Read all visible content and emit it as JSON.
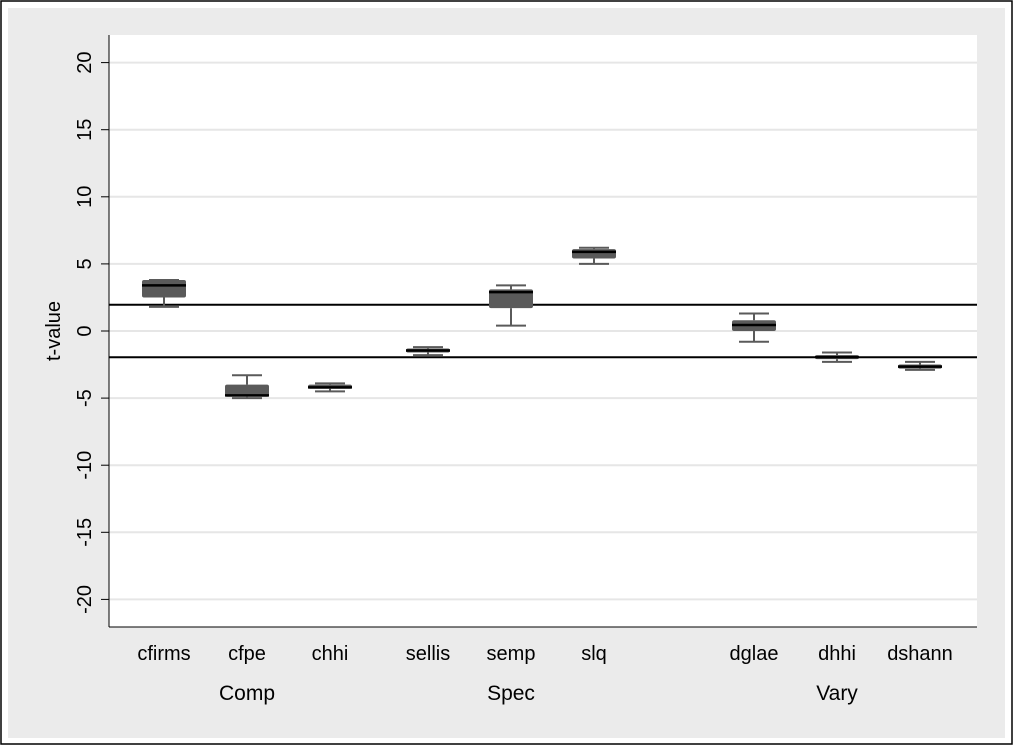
{
  "chart_data": {
    "type": "box",
    "ylabel": "t-value",
    "ylim": [
      -22,
      22
    ],
    "yticks": [
      -20,
      -15,
      -10,
      -5,
      0,
      5,
      10,
      15,
      20
    ],
    "grid": true,
    "reference_lines": [
      1.96,
      -1.96
    ],
    "groups": [
      {
        "name": "Comp",
        "categories": [
          "cfirms",
          "cfpe",
          "chhi"
        ]
      },
      {
        "name": "Spec",
        "categories": [
          "sellis",
          "semp",
          "slq"
        ]
      },
      {
        "name": "Vary",
        "categories": [
          "dglae",
          "dhhi",
          "dshann"
        ]
      }
    ],
    "boxes": [
      {
        "category": "cfirms",
        "min": 1.8,
        "q1": 2.5,
        "median": 3.4,
        "q3": 3.8,
        "max": 3.8
      },
      {
        "category": "cfpe",
        "min": -5.0,
        "q1": -4.9,
        "median": -4.8,
        "q3": -4.0,
        "max": -3.3
      },
      {
        "category": "chhi",
        "min": -4.5,
        "q1": -4.3,
        "median": -4.2,
        "q3": -4.0,
        "max": -3.9
      },
      {
        "category": "sellis",
        "min": -1.8,
        "q1": -1.6,
        "median": -1.45,
        "q3": -1.3,
        "max": -1.2
      },
      {
        "category": "semp",
        "min": 0.4,
        "q1": 1.7,
        "median": 2.9,
        "q3": 3.1,
        "max": 3.4
      },
      {
        "category": "slq",
        "min": 5.0,
        "q1": 5.4,
        "median": 5.9,
        "q3": 6.1,
        "max": 6.2
      },
      {
        "category": "dglae",
        "min": -0.8,
        "q1": 0.0,
        "median": 0.45,
        "q3": 0.8,
        "max": 1.3
      },
      {
        "category": "dhhi",
        "min": -2.3,
        "q1": -2.1,
        "median": -1.95,
        "q3": -1.8,
        "max": -1.6
      },
      {
        "category": "dshann",
        "min": -2.9,
        "q1": -2.8,
        "median": -2.65,
        "q3": -2.5,
        "max": -2.3
      }
    ],
    "colors": {
      "outer_background": "#ebebeb",
      "plot_background": "#ffffff",
      "box_fill": "#5a5a5a",
      "whisker": "#5a5a5a",
      "median": "#000000",
      "grid": "#e6e6e6",
      "reference": "#000000"
    }
  }
}
